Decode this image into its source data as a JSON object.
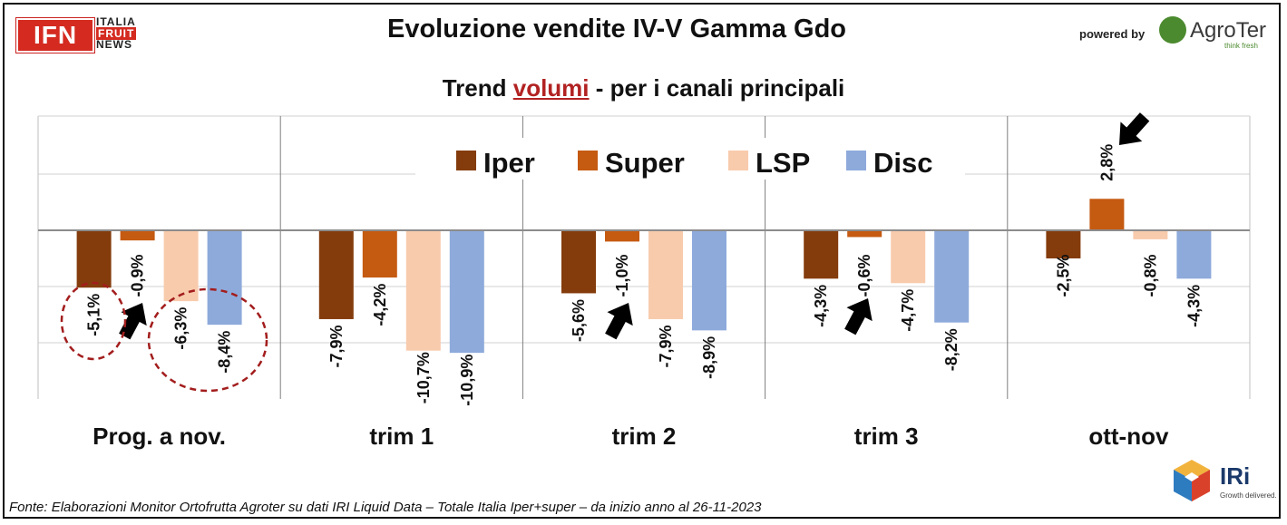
{
  "header": {
    "title": "Evoluzione vendite IV-V Gamma Gdo",
    "subtitle_pre": "Trend ",
    "subtitle_accent": "volumi",
    "subtitle_post": " - per i canali principali"
  },
  "logos": {
    "ifn_main": "IFN",
    "ifn_line1": "ITALIA",
    "ifn_line2": "FRUIT",
    "ifn_line3": "NEWS",
    "powered_by": "powered by",
    "agroter_name": "AgroTer",
    "agroter_tag": "think fresh",
    "iri_name": "IRi",
    "iri_tag": "Growth delivered."
  },
  "footnote": "Fonte: Elaborazioni Monitor Ortofrutta Agroter su dati IRI Liquid Data – Totale Italia Iper+super –  da inizio anno al 26-11-2023",
  "colors": {
    "Iper": "#843c0c",
    "Super": "#c55a11",
    "LSP": "#f8cbad",
    "Disc": "#8eaadb",
    "annotation_circle": "#a31d1d",
    "arrow": "#000000"
  },
  "chart_data": {
    "type": "bar",
    "categories": [
      "Prog. a nov.",
      "trim 1",
      "trim 2",
      "trim 3",
      "ott-nov"
    ],
    "series": [
      {
        "name": "Iper",
        "values": [
          -5.1,
          -7.9,
          -5.6,
          -4.3,
          -2.5
        ]
      },
      {
        "name": "Super",
        "values": [
          -0.9,
          -4.2,
          -1.0,
          -0.6,
          2.8
        ]
      },
      {
        "name": "LSP",
        "values": [
          -6.3,
          -10.7,
          -7.9,
          -4.7,
          -0.8
        ]
      },
      {
        "name": "Disc",
        "values": [
          -8.4,
          -10.9,
          -8.9,
          -8.2,
          -4.3
        ]
      }
    ],
    "value_labels": [
      [
        "-5,1%",
        "-0,9%",
        "-6,3%",
        "-8,4%"
      ],
      [
        "-7,9%",
        "-4,2%",
        "-10,7%",
        "-10,9%"
      ],
      [
        "-5,6%",
        "-1,0%",
        "-7,9%",
        "-8,9%"
      ],
      [
        "-4,3%",
        "-0,6%",
        "-4,7%",
        "-8,2%"
      ],
      [
        "-2,5%",
        "2,8%",
        "-0,8%",
        "-4,3%"
      ]
    ],
    "ylim": [
      -15,
      10
    ],
    "grid": true,
    "legend_position": "top-center",
    "annotations": {
      "arrows_highlight": [
        "Prog. a nov. / Super",
        "trim 2 / Super",
        "trim 3 / Super",
        "ott-nov / Super"
      ],
      "circled": [
        "Prog. a nov. / Iper",
        "Prog. a nov. / LSP + Disc"
      ]
    }
  }
}
